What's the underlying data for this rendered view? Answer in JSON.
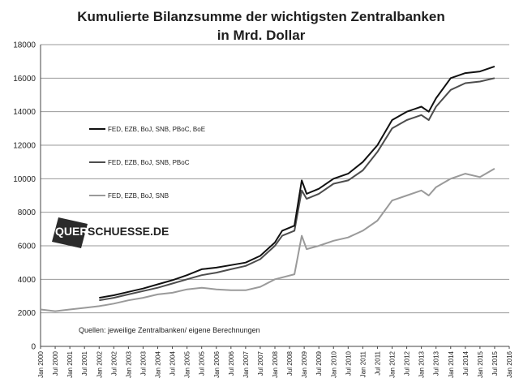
{
  "chart_data": {
    "type": "line",
    "title": "Kumulierte Bilanzsumme der wichtigsten Zentralbanken",
    "subtitle": "in Mrd. Dollar",
    "xlabel": "",
    "ylabel": "",
    "ylim": [
      0,
      18000
    ],
    "yticks": [
      "0",
      "2000",
      "4000",
      "6000",
      "8000",
      "10000",
      "12000",
      "14000",
      "16000",
      "18000"
    ],
    "x_tick_labels": [
      "Jan 2000",
      "Jul 2000",
      "Jan 2001",
      "Jul 2001",
      "Jan 2002",
      "Jul 2002",
      "Jan 2003",
      "Jul 2003",
      "Jan 2004",
      "Jul 2004",
      "Jan 2005",
      "Jul 2005",
      "Jan 2006",
      "Jul 2006",
      "Jan 2007",
      "Jul 2007",
      "Jan 2008",
      "Jul 2008",
      "Jan 2009",
      "Jul 2009",
      "Jan 2010",
      "Jul 2010",
      "Jan 2011",
      "Jul 2011",
      "Jan 2012",
      "Jul 2012",
      "Jan 2013",
      "Jul 2013",
      "Jan 2014",
      "Jul 2014",
      "Jan 2015",
      "Jul 2015",
      "Jan 2016"
    ],
    "grid": true,
    "legend_placement": "left",
    "series": [
      {
        "name": "FED, EZB, BoJ, SNB, PBoC, BoE",
        "color": "#111111",
        "points": [
          [
            "2002-01",
            2900
          ],
          [
            "2002-07",
            3050
          ],
          [
            "2003-01",
            3250
          ],
          [
            "2003-07",
            3450
          ],
          [
            "2004-01",
            3700
          ],
          [
            "2004-07",
            3950
          ],
          [
            "2005-01",
            4250
          ],
          [
            "2005-07",
            4600
          ],
          [
            "2006-01",
            4700
          ],
          [
            "2006-07",
            4850
          ],
          [
            "2007-01",
            5000
          ],
          [
            "2007-07",
            5400
          ],
          [
            "2008-01",
            6200
          ],
          [
            "2008-04",
            6900
          ],
          [
            "2008-09",
            7200
          ],
          [
            "2008-12",
            9900
          ],
          [
            "2009-02",
            9100
          ],
          [
            "2009-07",
            9400
          ],
          [
            "2010-01",
            10000
          ],
          [
            "2010-07",
            10300
          ],
          [
            "2011-01",
            11000
          ],
          [
            "2011-07",
            12000
          ],
          [
            "2012-01",
            13500
          ],
          [
            "2012-07",
            14000
          ],
          [
            "2013-01",
            14300
          ],
          [
            "2013-04",
            14000
          ],
          [
            "2013-07",
            14800
          ],
          [
            "2014-01",
            16000
          ],
          [
            "2014-07",
            16300
          ],
          [
            "2015-01",
            16400
          ],
          [
            "2015-07",
            16700
          ]
        ]
      },
      {
        "name": "FED, EZB, BoJ, SNB, PBoC",
        "color": "#4d4d4d",
        "points": [
          [
            "2002-01",
            2750
          ],
          [
            "2002-07",
            2900
          ],
          [
            "2003-01",
            3100
          ],
          [
            "2003-07",
            3300
          ],
          [
            "2004-01",
            3500
          ],
          [
            "2004-07",
            3750
          ],
          [
            "2005-01",
            4000
          ],
          [
            "2005-07",
            4250
          ],
          [
            "2006-01",
            4400
          ],
          [
            "2006-07",
            4600
          ],
          [
            "2007-01",
            4800
          ],
          [
            "2007-07",
            5200
          ],
          [
            "2008-01",
            6000
          ],
          [
            "2008-04",
            6600
          ],
          [
            "2008-09",
            6900
          ],
          [
            "2008-12",
            9300
          ],
          [
            "2009-02",
            8800
          ],
          [
            "2009-07",
            9100
          ],
          [
            "2010-01",
            9700
          ],
          [
            "2010-07",
            9900
          ],
          [
            "2011-01",
            10500
          ],
          [
            "2011-07",
            11600
          ],
          [
            "2012-01",
            13000
          ],
          [
            "2012-07",
            13500
          ],
          [
            "2013-01",
            13800
          ],
          [
            "2013-04",
            13500
          ],
          [
            "2013-07",
            14300
          ],
          [
            "2014-01",
            15300
          ],
          [
            "2014-07",
            15700
          ],
          [
            "2015-01",
            15800
          ],
          [
            "2015-07",
            16000
          ]
        ]
      },
      {
        "name": "FED, EZB, BoJ, SNB",
        "color": "#9a9a9a",
        "points": [
          [
            "2000-01",
            2200
          ],
          [
            "2000-07",
            2100
          ],
          [
            "2001-01",
            2200
          ],
          [
            "2001-07",
            2300
          ],
          [
            "2002-01",
            2400
          ],
          [
            "2002-07",
            2550
          ],
          [
            "2003-01",
            2750
          ],
          [
            "2003-07",
            2900
          ],
          [
            "2004-01",
            3100
          ],
          [
            "2004-07",
            3200
          ],
          [
            "2005-01",
            3400
          ],
          [
            "2005-07",
            3500
          ],
          [
            "2006-01",
            3400
          ],
          [
            "2006-07",
            3350
          ],
          [
            "2007-01",
            3350
          ],
          [
            "2007-07",
            3550
          ],
          [
            "2008-01",
            4000
          ],
          [
            "2008-09",
            4300
          ],
          [
            "2008-12",
            6600
          ],
          [
            "2009-02",
            5800
          ],
          [
            "2009-07",
            6000
          ],
          [
            "2010-01",
            6300
          ],
          [
            "2010-07",
            6500
          ],
          [
            "2011-01",
            6900
          ],
          [
            "2011-07",
            7500
          ],
          [
            "2012-01",
            8700
          ],
          [
            "2012-07",
            9000
          ],
          [
            "2013-01",
            9300
          ],
          [
            "2013-04",
            9000
          ],
          [
            "2013-07",
            9500
          ],
          [
            "2014-01",
            10000
          ],
          [
            "2014-07",
            10300
          ],
          [
            "2015-01",
            10100
          ],
          [
            "2015-07",
            10600
          ]
        ]
      }
    ],
    "annotations": {
      "source": "Quellen: jeweilige Zentralbanken/ eigene Berechnungen",
      "logo": "QUERSCHUESSE.DE"
    }
  }
}
